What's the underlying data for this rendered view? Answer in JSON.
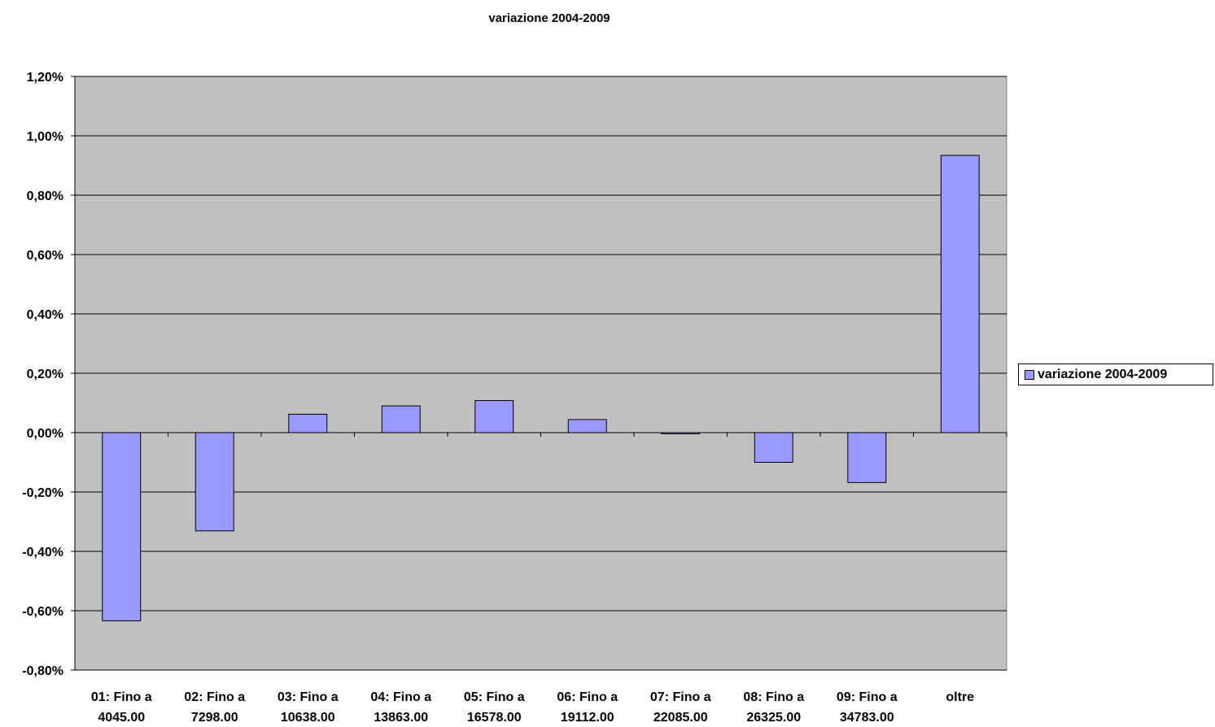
{
  "chart_data": {
    "type": "bar",
    "title": "variazione 2004-2009",
    "xlabel": "",
    "ylabel": "",
    "categories": [
      [
        "01: Fino a",
        "4045.00"
      ],
      [
        "02: Fino a",
        "7298.00"
      ],
      [
        "03: Fino a",
        "10638.00"
      ],
      [
        "04: Fino a",
        "13863.00"
      ],
      [
        "05: Fino a",
        "16578.00"
      ],
      [
        "06: Fino a",
        "19112.00"
      ],
      [
        "07: Fino a",
        "22085.00"
      ],
      [
        "08: Fino a",
        "26325.00"
      ],
      [
        "09: Fino a",
        "34783.00"
      ],
      [
        "oltre"
      ]
    ],
    "series": [
      {
        "name": "variazione 2004-2009",
        "values": [
          -0.634,
          -0.331,
          0.062,
          0.09,
          0.108,
          0.044,
          -0.004,
          -0.1,
          -0.168,
          0.934
        ],
        "color": "#9999ff"
      }
    ],
    "ylim": [
      -0.8,
      1.2
    ],
    "yticks": [
      1.2,
      1.0,
      0.8,
      0.6,
      0.4,
      0.2,
      0.0,
      -0.2,
      -0.4,
      -0.6,
      -0.8
    ],
    "ytick_labels": [
      "1,20%",
      "1,00%",
      "0,80%",
      "0,60%",
      "0,40%",
      "0,20%",
      "0,00%",
      "-0,20%",
      "-0,40%",
      "-0,60%",
      "-0,80%"
    ],
    "grid": true,
    "plot_background": "#c0c0c0",
    "legend_position": "right"
  }
}
